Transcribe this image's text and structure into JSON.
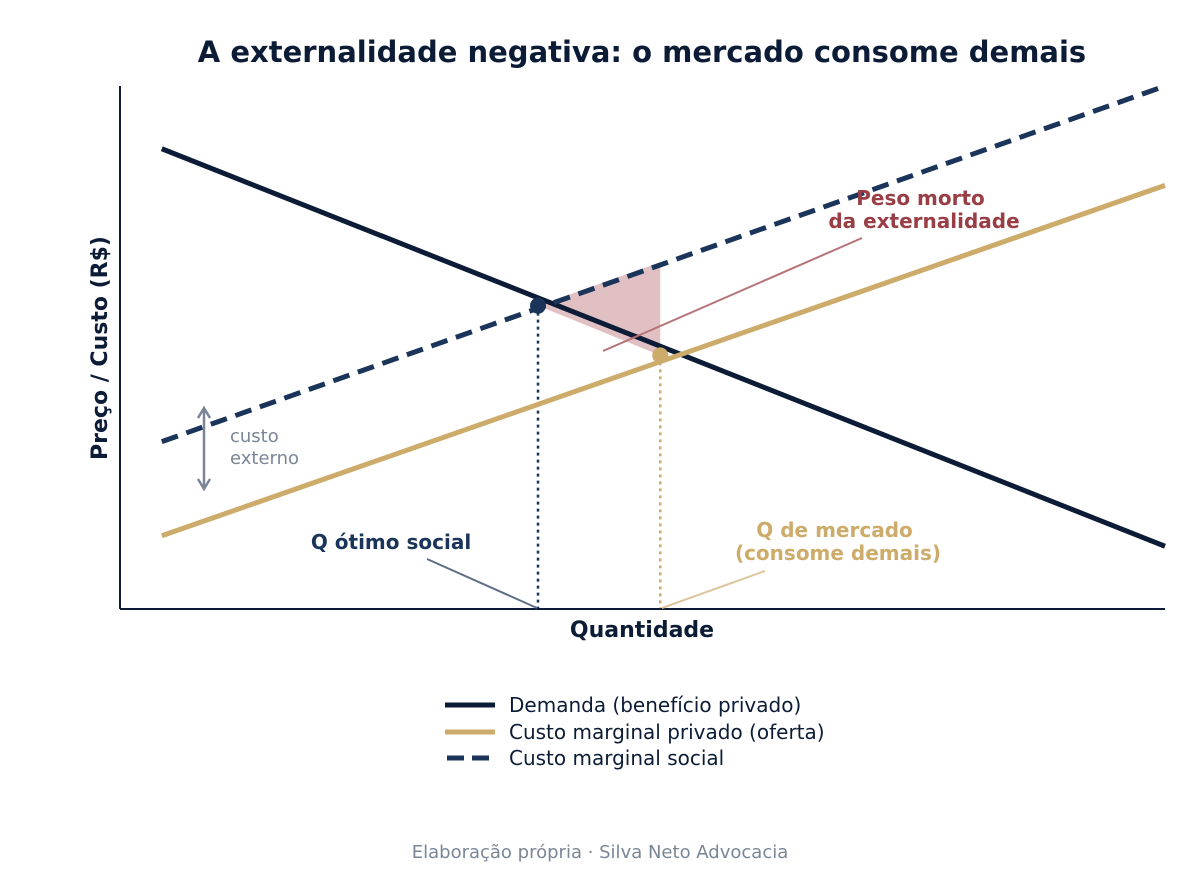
{
  "chart_data": {
    "type": "line",
    "title": "A externalidade negativa: o mercado consome demais",
    "xlabel": "Quantidade",
    "ylabel": "Preço / Custo (R$)",
    "xlim": [
      0,
      10
    ],
    "ylim": [
      0,
      10
    ],
    "grid": false,
    "legend_position": "bottom-center",
    "series": [
      {
        "name": "Demanda (benefício privado)",
        "color": "#0c1c36",
        "style": "solid",
        "x": [
          0.4,
          10
        ],
        "y": [
          8.8,
          1.2
        ]
      },
      {
        "name": "Custo marginal privado (oferta)",
        "color": "#cdab6a",
        "style": "solid",
        "x": [
          0.4,
          10
        ],
        "y": [
          1.4,
          8.1
        ]
      },
      {
        "name": "Custo marginal social",
        "color": "#1b3459",
        "style": "dashed",
        "x": [
          0.4,
          10
        ],
        "y": [
          3.2,
          10
        ]
      }
    ],
    "points": [
      {
        "id": "social-optimum",
        "x": 4.0,
        "y": 5.8,
        "color": "#1b3459"
      },
      {
        "id": "market-equilibrium",
        "x": 5.17,
        "y": 4.85,
        "color": "#cdab6a"
      }
    ],
    "deadweight_loss": {
      "color": "#c98d92",
      "vertices": [
        [
          4.0,
          5.8
        ],
        [
          5.17,
          6.63
        ],
        [
          5.17,
          4.85
        ]
      ]
    },
    "annotations": {
      "deadweight": {
        "lines": [
          "Peso morto",
          "da externalidade"
        ],
        "color": "#9a3e45"
      },
      "social_q": {
        "text": "Q ótimo social",
        "color": "#1b3459"
      },
      "market_q": {
        "lines": [
          "Q de mercado",
          "(consome demais)"
        ],
        "color": "#cdab6a"
      },
      "external_cost": {
        "lines": [
          "custo",
          "externo"
        ],
        "color": "#7a8596"
      }
    }
  },
  "credit": "Elaboração própria  ·  Silva Neto Advocacia"
}
